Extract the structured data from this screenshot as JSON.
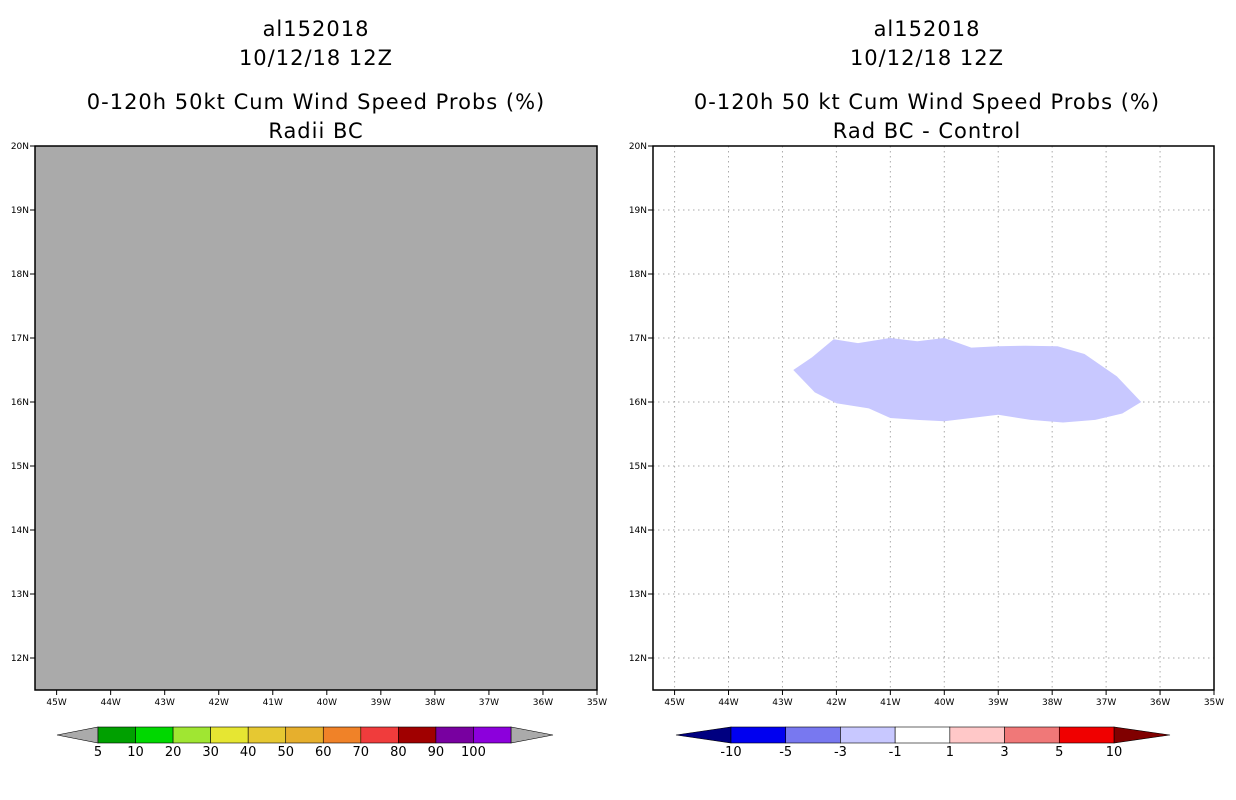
{
  "chart_data": [
    {
      "type": "heatmap",
      "storm_id": "al152018",
      "date": "10/12/18 12Z",
      "title": "0-120h 50kt Cum Wind Speed Probs (%)",
      "subtitle": "Radii BC",
      "x_ticks": [
        "45W",
        "44W",
        "43W",
        "42W",
        "41W",
        "40W",
        "39W",
        "38W",
        "37W",
        "36W",
        "35W"
      ],
      "y_ticks": [
        "12N",
        "13N",
        "14N",
        "15N",
        "16N",
        "17N",
        "18N",
        "19N",
        "20N"
      ],
      "xlim": [
        -45.4,
        -35
      ],
      "ylim": [
        11.5,
        20
      ],
      "fill_color": "#aaaaaa",
      "colorbar": {
        "labels": [
          "5",
          "10",
          "20",
          "30",
          "40",
          "50",
          "60",
          "70",
          "80",
          "90",
          "100"
        ],
        "colors": [
          "#00a000",
          "#00d800",
          "#a0e632",
          "#e6e632",
          "#e6c832",
          "#e6af2d",
          "#f08228",
          "#f03c3c",
          "#a00000",
          "#7800a0",
          "#8c00dc"
        ],
        "left_arrow_color": "#aaaaaa",
        "right_arrow_color": "#aaaaaa"
      },
      "regions": []
    },
    {
      "type": "heatmap",
      "storm_id": "al152018",
      "date": "10/12/18 12Z",
      "title": "0-120h 50 kt Cum Wind Speed Probs (%)",
      "subtitle": "Rad BC - Control",
      "x_ticks": [
        "45W",
        "44W",
        "43W",
        "42W",
        "41W",
        "40W",
        "39W",
        "38W",
        "37W",
        "36W",
        "35W"
      ],
      "y_ticks": [
        "12N",
        "13N",
        "14N",
        "15N",
        "16N",
        "17N",
        "18N",
        "19N",
        "20N"
      ],
      "xlim": [
        -45.4,
        -35
      ],
      "ylim": [
        11.5,
        20
      ],
      "fill_color": "#ffffff",
      "gridlines": true,
      "colorbar": {
        "labels": [
          "-10",
          "-5",
          "-3",
          "-1",
          "1",
          "3",
          "5",
          "10"
        ],
        "colors": [
          "#0000f0",
          "#7878f0",
          "#c8c8ff",
          "#ffffff",
          "#ffc8c8",
          "#f07878",
          "#f00000"
        ],
        "left_arrow_color": "#000080",
        "right_arrow_color": "#800000"
      },
      "regions": [
        {
          "name": "difference-region",
          "range": "-3 to -1",
          "color": "#c8c8ff",
          "outline": [
            [
              -42.8,
              16.5
            ],
            [
              -42.45,
              16.7
            ],
            [
              -42.05,
              16.98
            ],
            [
              -41.6,
              16.92
            ],
            [
              -41.0,
              17.0
            ],
            [
              -40.5,
              16.95
            ],
            [
              -40.0,
              17.0
            ],
            [
              -39.5,
              16.85
            ],
            [
              -39.0,
              16.87
            ],
            [
              -38.5,
              16.88
            ],
            [
              -37.9,
              16.87
            ],
            [
              -37.4,
              16.75
            ],
            [
              -36.8,
              16.4
            ],
            [
              -36.35,
              16.0
            ],
            [
              -36.7,
              15.82
            ],
            [
              -37.2,
              15.72
            ],
            [
              -37.8,
              15.68
            ],
            [
              -38.4,
              15.72
            ],
            [
              -39.0,
              15.8
            ],
            [
              -39.5,
              15.75
            ],
            [
              -40.0,
              15.7
            ],
            [
              -40.5,
              15.72
            ],
            [
              -41.0,
              15.75
            ],
            [
              -41.4,
              15.9
            ],
            [
              -42.0,
              15.98
            ],
            [
              -42.4,
              16.15
            ]
          ]
        }
      ]
    }
  ]
}
